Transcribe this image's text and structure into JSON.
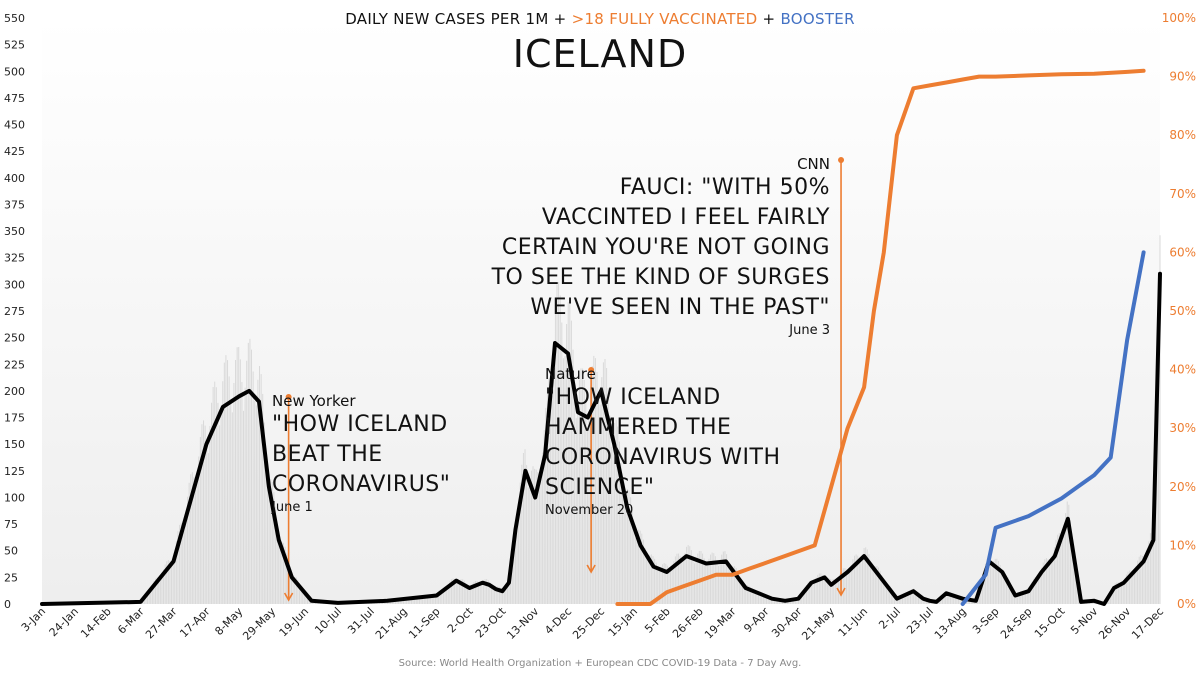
{
  "header": {
    "part1": "DAILY NEW CASES PER 1M + ",
    "part2": ">18 FULLY VACCINATED",
    "part3": " + ",
    "part4": "BOOSTER"
  },
  "title": "ICELAND",
  "source": "Source: World Health Organization + European CDC COVID-19 Data - 7 Day Avg.",
  "annotations": [
    {
      "id": "newyorker",
      "outlet": "New Yorker",
      "quote": "\"HOW ICELAND BEAT THE CORONAVIRUS\"",
      "date": "June 1"
    },
    {
      "id": "nature",
      "outlet": "Nature",
      "quote": "\"HOW ICELAND HAMMERED THE CORONAVIRUS WITH SCIENCE\"",
      "date": "November 20"
    },
    {
      "id": "cnn",
      "outlet": "CNN",
      "quote": "FAUCI: \"WITH 50% VACCINTED I FEEL FAIRLY CERTAIN YOU'RE NOT GOING TO SEE THE KIND OF SURGES WE'VE SEEN IN THE PAST\"",
      "date": "June 3"
    }
  ],
  "chart_data": {
    "type": "line",
    "title": "ICELAND",
    "x_tick_labels": [
      "3-Jan",
      "24-Jan",
      "14-Feb",
      "6-Mar",
      "27-Mar",
      "17-Apr",
      "8-May",
      "29-May",
      "19-Jun",
      "10-Jul",
      "31-Jul",
      "21-Aug",
      "11-Sep",
      "2-Oct",
      "23-Oct",
      "13-Nov",
      "4-Dec",
      "25-Dec",
      "15-Jan",
      "5-Feb",
      "26-Feb",
      "19-Mar",
      "9-Apr",
      "30-Apr",
      "21-May",
      "11-Jun",
      "2-Jul",
      "23-Jul",
      "13-Aug",
      "3-Sep",
      "24-Sep",
      "15-Oct",
      "5-Nov",
      "26-Nov",
      "17-Dec"
    ],
    "y_left": {
      "min": 0,
      "max": 550,
      "ticks": [
        0,
        25,
        50,
        75,
        100,
        125,
        150,
        175,
        200,
        225,
        250,
        275,
        300,
        325,
        350,
        375,
        400,
        425,
        450,
        475,
        500,
        525,
        550
      ]
    },
    "y_right": {
      "min": 0,
      "max": 100,
      "unit": "%",
      "tick_labels": [
        "0%",
        "10%",
        "20%",
        "30%",
        "40%",
        "50%",
        "60%",
        "70%",
        "80%",
        "90%",
        "100%"
      ]
    },
    "colors": {
      "cases": "#000000",
      "vaccinated": "#ed7d31",
      "booster": "#4472c4",
      "daily_bars": "#d9d9d9"
    },
    "series": [
      {
        "name": "DAILY NEW CASES PER 1M",
        "axis": "left",
        "x_index": [
          0,
          3,
          4,
          5,
          5.5,
          6,
          6.3,
          6.6,
          6.9,
          7.2,
          7.6,
          8.2,
          9,
          10.5,
          12,
          12.6,
          13,
          13.4,
          13.6,
          13.8,
          14,
          14.2,
          14.4,
          14.7,
          15,
          15.3,
          15.6,
          16,
          16.3,
          16.6,
          17,
          17.4,
          17.8,
          18.2,
          18.6,
          19,
          19.6,
          20.2,
          20.8,
          21.4,
          21.8,
          22.2,
          22.6,
          23,
          23.4,
          23.8,
          24,
          24.5,
          25,
          26,
          26.5,
          26.8,
          27,
          27.2,
          27.5,
          28,
          28.4,
          28.8,
          29.2,
          29.6,
          30,
          30.4,
          30.8,
          31.2,
          31.6,
          32,
          32.3,
          32.6,
          32.9,
          33.2,
          33.5,
          33.8,
          34
        ],
        "values": [
          0,
          2,
          40,
          150,
          185,
          195,
          200,
          190,
          110,
          60,
          25,
          3,
          1,
          3,
          8,
          22,
          15,
          20,
          18,
          14,
          12,
          20,
          70,
          125,
          100,
          140,
          245,
          235,
          180,
          175,
          200,
          150,
          90,
          55,
          35,
          30,
          45,
          38,
          40,
          15,
          10,
          5,
          3,
          5,
          20,
          25,
          18,
          30,
          45,
          5,
          12,
          5,
          3,
          2,
          10,
          5,
          3,
          40,
          30,
          8,
          12,
          30,
          45,
          80,
          2,
          3,
          0,
          15,
          20,
          30,
          40,
          60,
          310
        ]
      },
      {
        "name": ">18 FULLY VACCINATED",
        "axis": "right",
        "x_index": [
          17.5,
          18,
          18.5,
          19,
          19.5,
          20,
          20.5,
          21,
          21.5,
          22,
          22.5,
          23,
          23.5,
          24,
          24.5,
          25,
          25.3,
          25.6,
          26,
          26.5,
          27,
          27.5,
          28,
          28.5,
          29,
          30,
          31,
          32,
          33,
          33.5
        ],
        "values": [
          0,
          0,
          0,
          2,
          3,
          4,
          5,
          5,
          6,
          7,
          8,
          9,
          10,
          20,
          30,
          37,
          50,
          60,
          80,
          88,
          88.5,
          89,
          89.5,
          90,
          90,
          90.2,
          90.4,
          90.5,
          90.8,
          91
        ]
      },
      {
        "name": "BOOSTER",
        "axis": "right",
        "x_index": [
          28,
          28.7,
          29,
          30,
          31,
          31.5,
          32,
          32.5,
          33,
          33.5
        ],
        "values": [
          0,
          5,
          13,
          15,
          18,
          20,
          22,
          25,
          45,
          60
        ]
      }
    ]
  }
}
